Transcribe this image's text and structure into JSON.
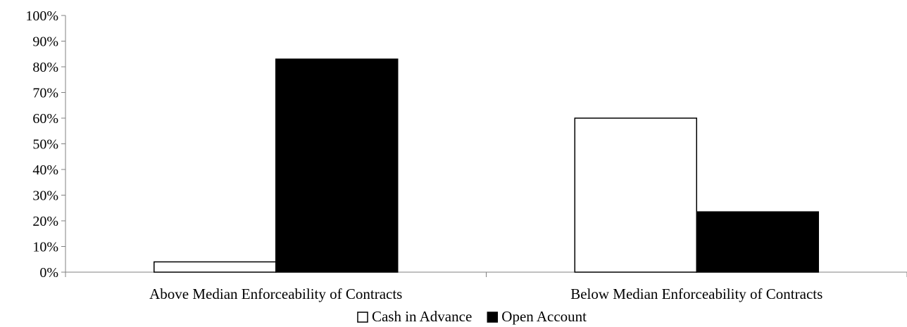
{
  "chart_data": {
    "type": "bar",
    "categories": [
      "Above Median Enforceability of Contracts",
      "Below Median Enforceability of Contracts"
    ],
    "series": [
      {
        "name": "Cash in Advance",
        "values": [
          4,
          60
        ],
        "color": "#ffffff",
        "stroke": "#000000"
      },
      {
        "name": "Open Account",
        "values": [
          83,
          23.5
        ],
        "color": "#000000",
        "stroke": "#000000"
      }
    ],
    "title": "",
    "xlabel": "",
    "ylabel": "",
    "ylim": [
      0,
      100
    ],
    "yticks": [
      "0%",
      "10%",
      "20%",
      "30%",
      "40%",
      "50%",
      "60%",
      "70%",
      "80%",
      "90%",
      "100%"
    ],
    "grid": false,
    "legend": "bottom"
  }
}
